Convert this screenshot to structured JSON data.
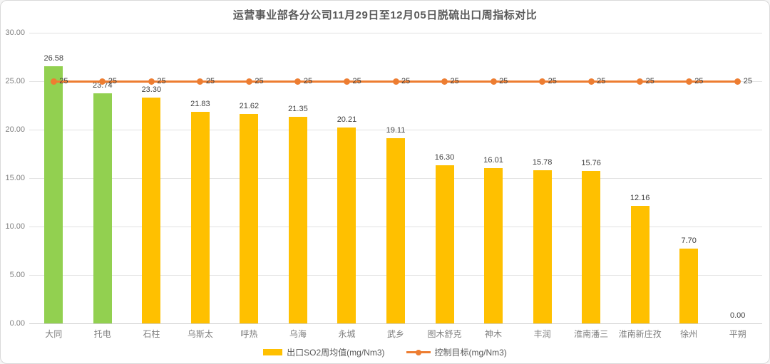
{
  "title": "运营事业部各分公司11月29日至12月05日脱硫出口周指标对比",
  "colors": {
    "highlight_bar": "#92d050",
    "normal_bar": "#ffc000",
    "target_line": "#ed7d31",
    "grid": "#e2e2e2",
    "axis_text": "#7f7f7f",
    "data_label_text": "#404040",
    "title_text": "#595959"
  },
  "chart_data": {
    "type": "bar",
    "title": "运营事业部各分公司11月29日至12月05日脱硫出口周指标对比",
    "categories": [
      "大同",
      "托电",
      "石柱",
      "乌斯太",
      "呼热",
      "乌海",
      "永城",
      "武乡",
      "图木舒克",
      "神木",
      "丰润",
      "淮南潘三",
      "淮南新庄孜",
      "徐州",
      "平朔"
    ],
    "series": [
      {
        "name": "出口SO2周均值(mg/Nm3)",
        "type": "bar",
        "values": [
          26.58,
          23.74,
          23.3,
          21.83,
          21.62,
          21.35,
          20.21,
          19.11,
          16.3,
          16.01,
          15.78,
          15.76,
          12.16,
          7.7,
          0.0
        ],
        "labels": [
          "26.58",
          "23.74",
          "23.30",
          "21.83",
          "21.62",
          "21.35",
          "20.21",
          "19.11",
          "16.30",
          "16.01",
          "15.78",
          "15.76",
          "12.16",
          "7.70",
          "0.00"
        ],
        "colors": [
          "#92d050",
          "#92d050",
          "#ffc000",
          "#ffc000",
          "#ffc000",
          "#ffc000",
          "#ffc000",
          "#ffc000",
          "#ffc000",
          "#ffc000",
          "#ffc000",
          "#ffc000",
          "#ffc000",
          "#ffc000",
          "#ffc000"
        ]
      },
      {
        "name": "控制目标(mg/Nm3)",
        "type": "line",
        "values": [
          25,
          25,
          25,
          25,
          25,
          25,
          25,
          25,
          25,
          25,
          25,
          25,
          25,
          25,
          25
        ],
        "point_label": "25",
        "color": "#ed7d31"
      }
    ],
    "xlabel": "",
    "ylabel": "",
    "ylim": [
      0,
      30
    ],
    "ytick_values": [
      0,
      5,
      10,
      15,
      20,
      25,
      30
    ],
    "ytick_labels": [
      "0.00",
      "5.00",
      "10.00",
      "15.00",
      "20.00",
      "25.00",
      "30.00"
    ],
    "grid": true,
    "legend_position": "bottom"
  }
}
